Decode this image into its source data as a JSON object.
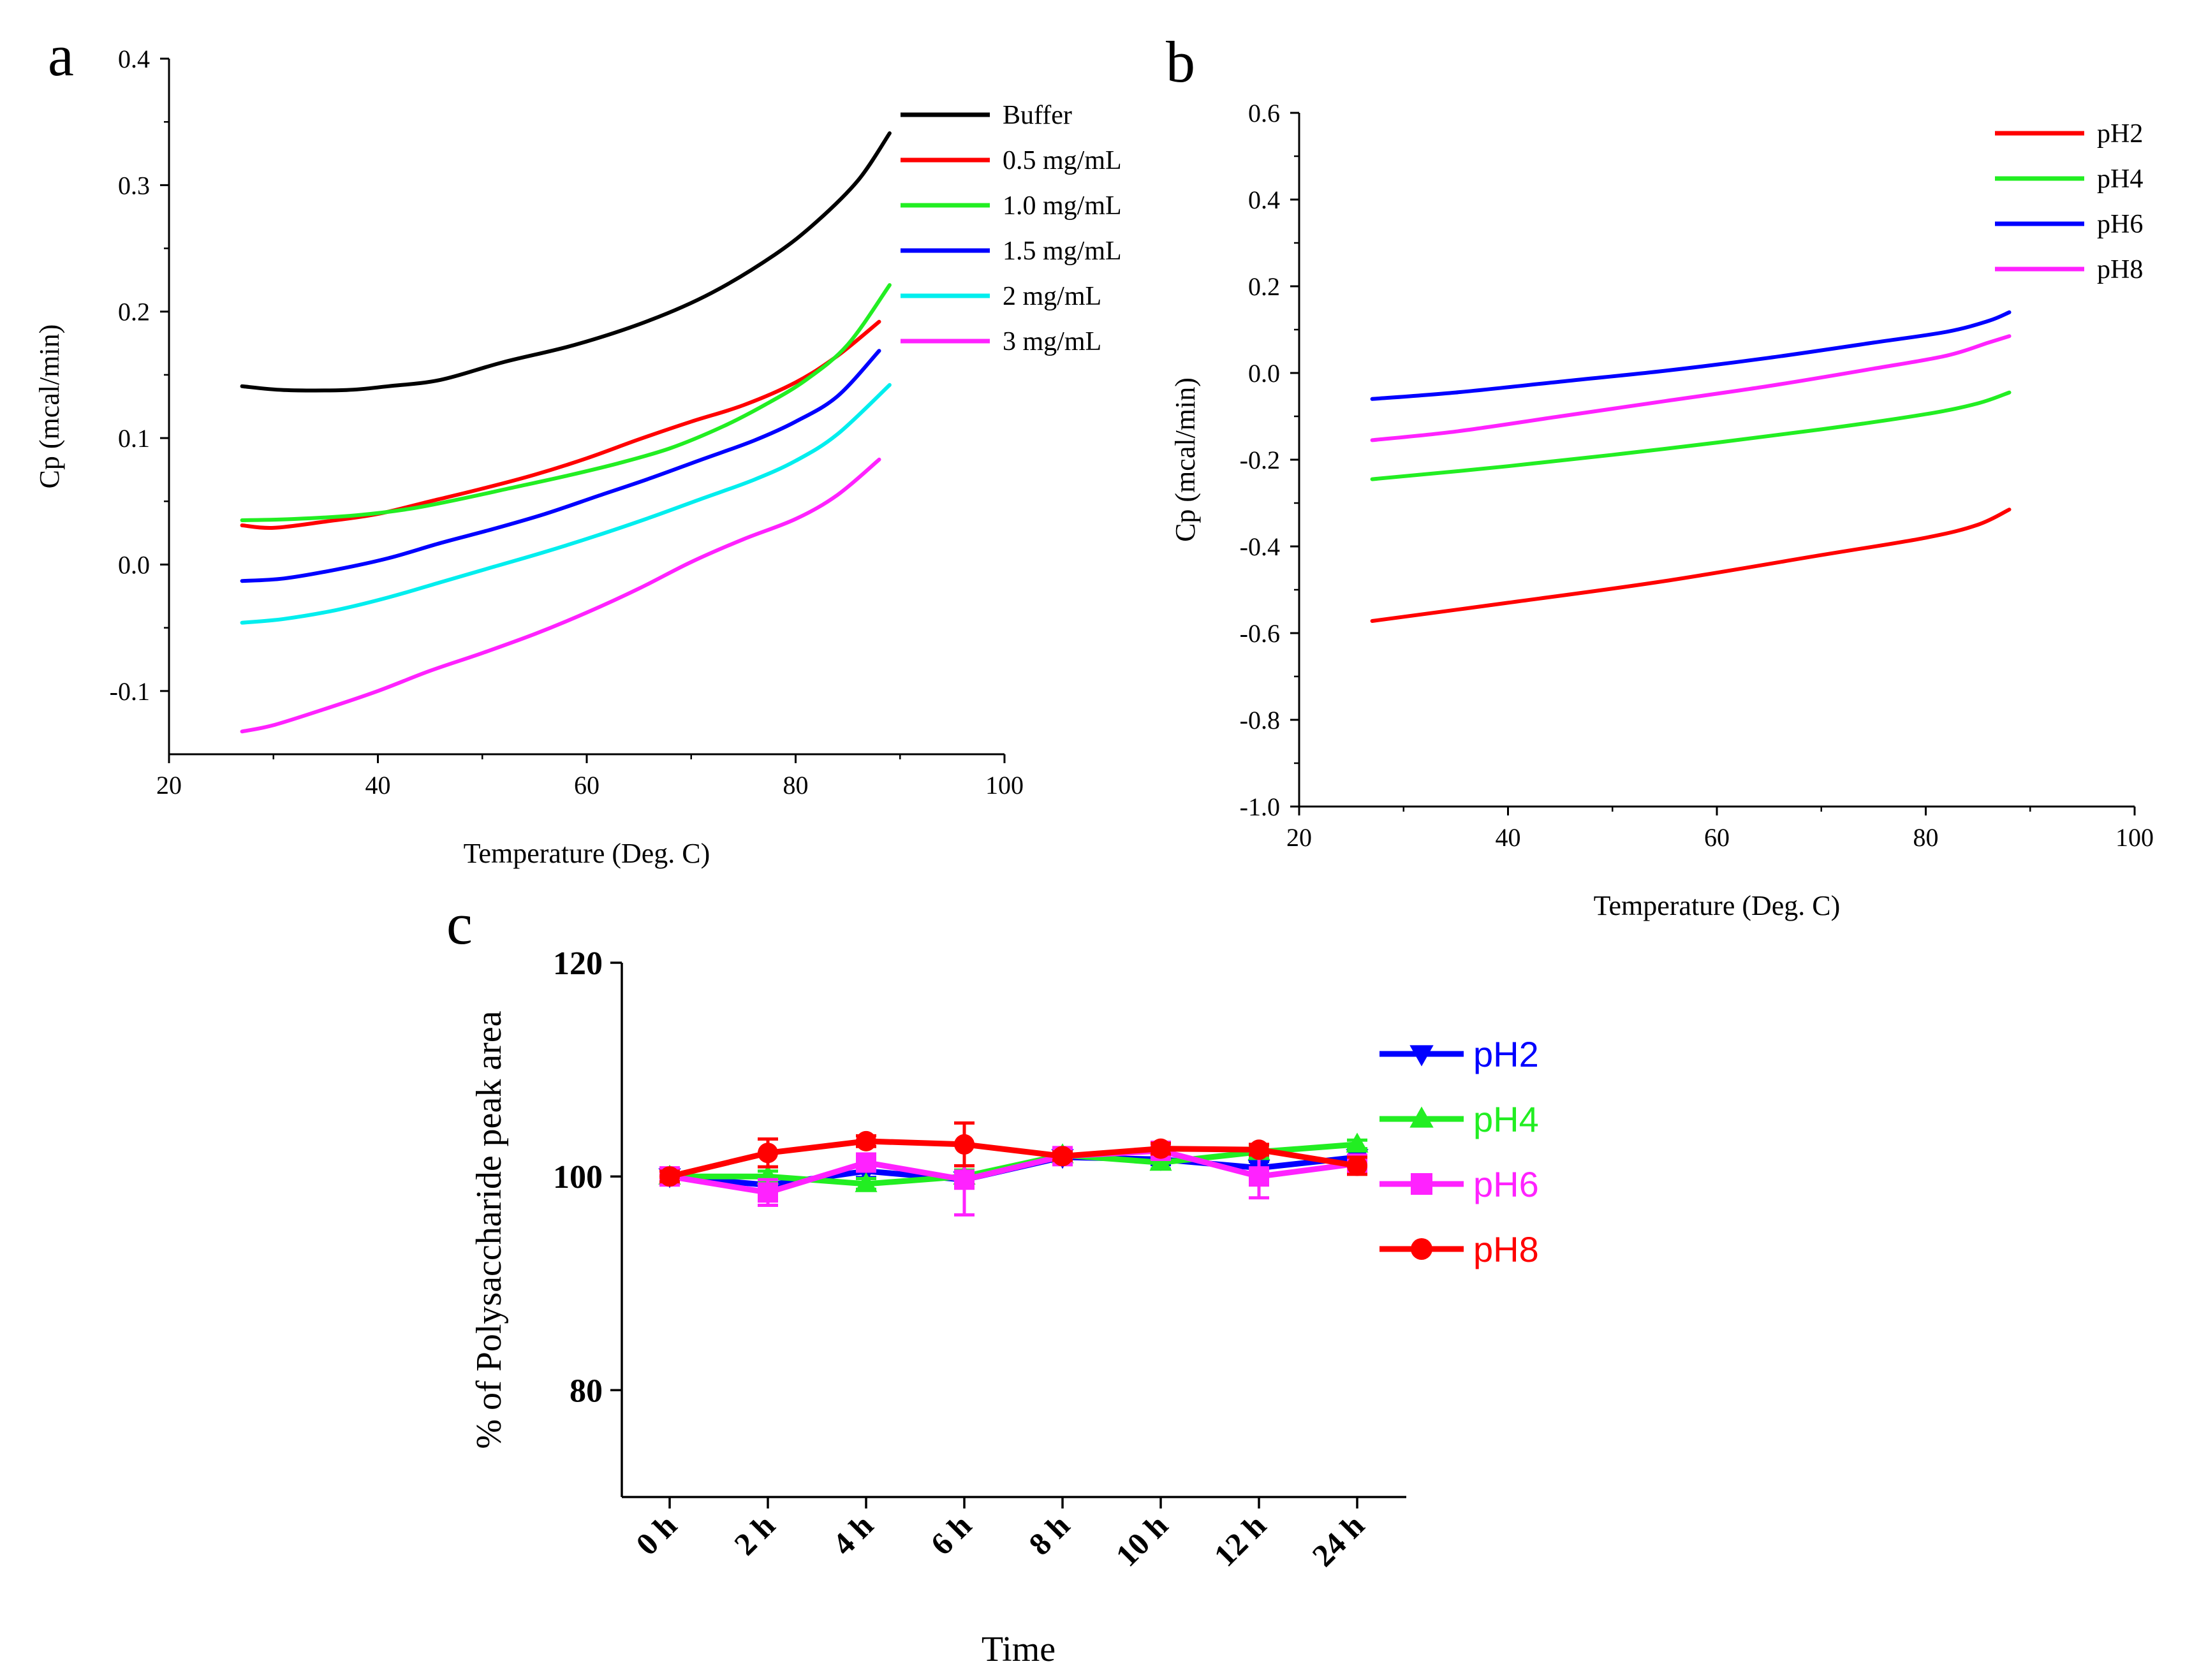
{
  "chart_data": [
    {
      "panel_label": "a",
      "type": "line",
      "xlabel": "Temperature (Deg. C)",
      "ylabel": "Cp (mcal/min)",
      "xlim": [
        20,
        100
      ],
      "ylim": [
        -0.15,
        0.4
      ],
      "xticks": [
        20,
        40,
        60,
        80,
        100
      ],
      "xtick_labels": [
        "20",
        "40",
        "60",
        "80",
        "100"
      ],
      "yticks": [
        -0.1,
        0.0,
        0.1,
        0.2,
        0.3,
        0.4
      ],
      "ytick_labels": [
        "-0.1",
        "0.0",
        "0.1",
        "0.2",
        "0.3",
        "0.4"
      ],
      "legend_position": "top-right",
      "series": [
        {
          "name": "Buffer",
          "color": "#000000",
          "x": [
            27,
            31,
            37,
            41,
            46,
            52,
            59,
            66,
            72,
            78,
            82,
            86,
            89
          ],
          "y": [
            0.141,
            0.138,
            0.138,
            0.141,
            0.146,
            0.16,
            0.174,
            0.193,
            0.215,
            0.245,
            0.271,
            0.304,
            0.341
          ]
        },
        {
          "name": "0.5 mg/mL",
          "color": "#ff0000",
          "x": [
            27,
            30,
            35,
            40,
            45,
            50,
            55,
            60,
            65,
            70,
            75,
            80,
            84,
            88
          ],
          "y": [
            0.031,
            0.029,
            0.034,
            0.04,
            0.05,
            0.06,
            0.071,
            0.084,
            0.099,
            0.113,
            0.126,
            0.144,
            0.165,
            0.192
          ]
        },
        {
          "name": "1.0 mg/mL",
          "color": "#22ee22",
          "x": [
            27,
            32,
            38,
            43,
            48,
            53,
            58,
            63,
            68,
            73,
            77,
            81,
            85,
            89
          ],
          "y": [
            0.035,
            0.036,
            0.039,
            0.044,
            0.052,
            0.061,
            0.07,
            0.08,
            0.092,
            0.109,
            0.126,
            0.146,
            0.174,
            0.221
          ]
        },
        {
          "name": "1.5 mg/mL",
          "color": "#0000ff",
          "x": [
            27,
            31,
            36,
            41,
            46,
            51,
            56,
            61,
            66,
            71,
            76,
            80,
            84,
            88
          ],
          "y": [
            -0.013,
            -0.011,
            -0.004,
            0.005,
            0.017,
            0.028,
            0.04,
            0.054,
            0.068,
            0.083,
            0.098,
            0.113,
            0.133,
            0.169
          ]
        },
        {
          "name": "2 mg/mL",
          "color": "#00eeee",
          "x": [
            27,
            31,
            36,
            41,
            46,
            51,
            56,
            61,
            66,
            71,
            76,
            80,
            84,
            89
          ],
          "y": [
            -0.046,
            -0.043,
            -0.036,
            -0.026,
            -0.014,
            -0.002,
            0.01,
            0.023,
            0.037,
            0.052,
            0.067,
            0.082,
            0.103,
            0.142
          ]
        },
        {
          "name": "3 mg/mL",
          "color": "#ff22ff",
          "x": [
            27,
            30,
            35,
            40,
            45,
            50,
            55,
            60,
            65,
            70,
            75,
            80,
            84,
            88
          ],
          "y": [
            -0.132,
            -0.127,
            -0.114,
            -0.1,
            -0.084,
            -0.07,
            -0.055,
            -0.038,
            -0.019,
            0.002,
            0.02,
            0.036,
            0.055,
            0.083
          ]
        }
      ]
    },
    {
      "panel_label": "b",
      "type": "line",
      "xlabel": "Temperature (Deg. C)",
      "ylabel": "Cp (mcal/min)",
      "xlim": [
        20,
        100
      ],
      "ylim": [
        -1.0,
        0.6
      ],
      "xticks": [
        20,
        40,
        60,
        80,
        100
      ],
      "xtick_labels": [
        "20",
        "40",
        "60",
        "80",
        "100"
      ],
      "yticks": [
        -1.0,
        -0.8,
        -0.6,
        -0.4,
        -0.2,
        0.0,
        0.2,
        0.4,
        0.6
      ],
      "ytick_labels": [
        "-1.0",
        "-0.8",
        "-0.6",
        "-0.4",
        "-0.2",
        "0.0",
        "0.2",
        "0.4",
        "0.6"
      ],
      "legend_position": "top-right",
      "series": [
        {
          "name": "pH2",
          "color": "#ff0000",
          "x": [
            27,
            40,
            55,
            70,
            80,
            85,
            88
          ],
          "y": [
            -0.572,
            -0.53,
            -0.48,
            -0.42,
            -0.38,
            -0.35,
            -0.315
          ]
        },
        {
          "name": "pH4",
          "color": "#22ee22",
          "x": [
            27,
            40,
            55,
            70,
            80,
            85,
            88
          ],
          "y": [
            -0.245,
            -0.215,
            -0.175,
            -0.13,
            -0.095,
            -0.07,
            -0.045
          ]
        },
        {
          "name": "pH6",
          "color": "#0000ff",
          "x": [
            27,
            35,
            45,
            55,
            65,
            75,
            82,
            86,
            88
          ],
          "y": [
            -0.06,
            -0.045,
            -0.02,
            0.005,
            0.035,
            0.07,
            0.095,
            0.12,
            0.14
          ]
        },
        {
          "name": "pH8",
          "color": "#ff22ff",
          "x": [
            27,
            35,
            45,
            55,
            65,
            75,
            82,
            86,
            88
          ],
          "y": [
            -0.155,
            -0.135,
            -0.1,
            -0.065,
            -0.03,
            0.01,
            0.04,
            0.07,
            0.085
          ]
        }
      ]
    },
    {
      "panel_label": "c",
      "type": "line",
      "xlabel": "Time",
      "ylabel": "% of Polysaccharide peak area",
      "categories": [
        "0 h",
        "2 h",
        "4 h",
        "6 h",
        "8 h",
        "10 h",
        "12 h",
        "24 h"
      ],
      "ylim": [
        70,
        120
      ],
      "yticks": [
        80,
        100,
        120
      ],
      "ytick_labels": [
        "80",
        "100",
        "120"
      ],
      "legend_position": "right",
      "series": [
        {
          "name": "pH2",
          "color": "#0000ff",
          "marker": "triangle-down",
          "values": [
            100.0,
            99.2,
            100.5,
            99.7,
            101.8,
            101.6,
            100.8,
            101.8
          ],
          "errors": [
            0.6,
            0.6,
            0.6,
            0.6,
            0.4,
            0.5,
            0.6,
            0.6
          ]
        },
        {
          "name": "pH4",
          "color": "#22ee22",
          "marker": "triangle-up",
          "values": [
            100.0,
            100.0,
            99.3,
            100.0,
            102.0,
            101.3,
            102.3,
            103.0
          ],
          "errors": [
            0.5,
            0.5,
            0.5,
            0.6,
            0.4,
            0.6,
            0.6,
            0.4
          ]
        },
        {
          "name": "pH6",
          "color": "#ff22ff",
          "marker": "square",
          "values": [
            100.0,
            98.5,
            101.3,
            99.7,
            101.9,
            102.4,
            100.0,
            101.2
          ],
          "errors": [
            0.8,
            1.2,
            0.8,
            3.3,
            0.5,
            0.7,
            2.0,
            0.6
          ]
        },
        {
          "name": "pH8",
          "color": "#ff0000",
          "marker": "circle",
          "values": [
            100.0,
            102.2,
            103.3,
            103.0,
            101.9,
            102.6,
            102.5,
            101.0
          ],
          "errors": [
            0.5,
            1.3,
            0.5,
            2.0,
            0.4,
            0.5,
            0.5,
            0.8
          ]
        }
      ]
    }
  ]
}
